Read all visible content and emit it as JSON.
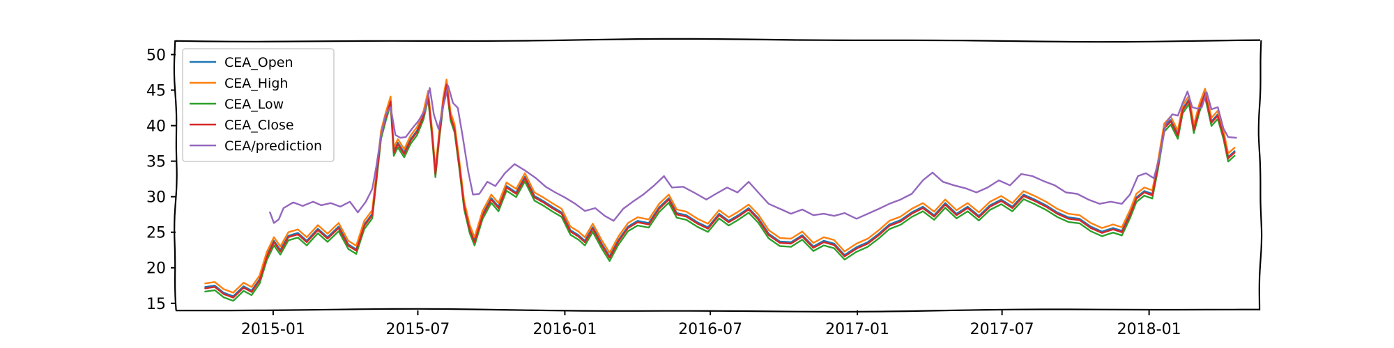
{
  "chart_data": {
    "type": "line",
    "title": "",
    "xlabel": "",
    "ylabel": "",
    "xlim": [
      "2014-09-01",
      "2018-05-20"
    ],
    "ylim": [
      14,
      52
    ],
    "yticks": [
      15,
      20,
      25,
      30,
      35,
      40,
      45,
      50
    ],
    "xticks": [
      {
        "date": "2015-01-01",
        "label": "2015-01"
      },
      {
        "date": "2015-07-01",
        "label": "2015-07"
      },
      {
        "date": "2016-01-01",
        "label": "2016-01"
      },
      {
        "date": "2016-07-01",
        "label": "2016-07"
      },
      {
        "date": "2017-01-01",
        "label": "2017-01"
      },
      {
        "date": "2017-07-01",
        "label": "2017-07"
      },
      {
        "date": "2018-01-01",
        "label": "2018-01"
      }
    ],
    "grid": false,
    "legend_position": "top-left",
    "close_series": [
      [
        "2014-10-08",
        17.1
      ],
      [
        "2014-10-20",
        17.3
      ],
      [
        "2014-10-31",
        16.3
      ],
      [
        "2014-11-12",
        15.8
      ],
      [
        "2014-11-25",
        17.2
      ],
      [
        "2014-12-05",
        16.6
      ],
      [
        "2014-12-15",
        18.2
      ],
      [
        "2014-12-24",
        21.5
      ],
      [
        "2015-01-02",
        23.6
      ],
      [
        "2015-01-10",
        22.3
      ],
      [
        "2015-01-20",
        24.3
      ],
      [
        "2015-02-01",
        24.7
      ],
      [
        "2015-02-12",
        23.6
      ],
      [
        "2015-02-26",
        25.3
      ],
      [
        "2015-03-10",
        24.1
      ],
      [
        "2015-03-24",
        25.6
      ],
      [
        "2015-04-05",
        23.1
      ],
      [
        "2015-04-15",
        22.4
      ],
      [
        "2015-04-25",
        25.9
      ],
      [
        "2015-05-05",
        27.4
      ],
      [
        "2015-05-10",
        32.4
      ],
      [
        "2015-05-16",
        38.6
      ],
      [
        "2015-05-22",
        41.2
      ],
      [
        "2015-05-28",
        43.4
      ],
      [
        "2015-06-01",
        36.2
      ],
      [
        "2015-06-06",
        37.4
      ],
      [
        "2015-06-14",
        36.0
      ],
      [
        "2015-06-22",
        37.9
      ],
      [
        "2015-06-30",
        39.1
      ],
      [
        "2015-07-08",
        41.3
      ],
      [
        "2015-07-14",
        44.2
      ],
      [
        "2015-07-19",
        38.6
      ],
      [
        "2015-07-23",
        33.2
      ],
      [
        "2015-07-28",
        38.7
      ],
      [
        "2015-08-02",
        43.4
      ],
      [
        "2015-08-06",
        45.8
      ],
      [
        "2015-08-11",
        41.2
      ],
      [
        "2015-08-16",
        39.5
      ],
      [
        "2015-08-22",
        34.3
      ],
      [
        "2015-08-28",
        28.7
      ],
      [
        "2015-09-04",
        25.3
      ],
      [
        "2015-09-10",
        23.6
      ],
      [
        "2015-09-20",
        27.3
      ],
      [
        "2015-10-01",
        29.6
      ],
      [
        "2015-10-10",
        28.4
      ],
      [
        "2015-10-20",
        31.3
      ],
      [
        "2015-11-01",
        30.4
      ],
      [
        "2015-11-12",
        32.6
      ],
      [
        "2015-11-24",
        29.9
      ],
      [
        "2015-12-05",
        29.2
      ],
      [
        "2015-12-16",
        28.4
      ],
      [
        "2015-12-28",
        27.6
      ],
      [
        "2016-01-08",
        25.1
      ],
      [
        "2016-01-18",
        24.4
      ],
      [
        "2016-01-26",
        23.6
      ],
      [
        "2016-02-05",
        25.5
      ],
      [
        "2016-02-16",
        23.2
      ],
      [
        "2016-02-26",
        21.4
      ],
      [
        "2016-03-08",
        23.7
      ],
      [
        "2016-03-20",
        25.6
      ],
      [
        "2016-04-01",
        26.4
      ],
      [
        "2016-04-15",
        26.1
      ],
      [
        "2016-04-28",
        28.3
      ],
      [
        "2016-05-10",
        29.6
      ],
      [
        "2016-05-20",
        27.5
      ],
      [
        "2016-06-01",
        27.2
      ],
      [
        "2016-06-15",
        26.2
      ],
      [
        "2016-06-28",
        25.5
      ],
      [
        "2016-07-12",
        27.4
      ],
      [
        "2016-07-24",
        26.4
      ],
      [
        "2016-08-05",
        27.2
      ],
      [
        "2016-08-18",
        28.2
      ],
      [
        "2016-08-30",
        26.8
      ],
      [
        "2016-09-12",
        24.6
      ],
      [
        "2016-09-26",
        23.5
      ],
      [
        "2016-10-10",
        23.4
      ],
      [
        "2016-10-24",
        24.4
      ],
      [
        "2016-11-07",
        22.8
      ],
      [
        "2016-11-20",
        23.6
      ],
      [
        "2016-12-03",
        23.2
      ],
      [
        "2016-12-16",
        21.6
      ],
      [
        "2016-12-31",
        22.7
      ],
      [
        "2017-01-14",
        23.4
      ],
      [
        "2017-01-28",
        24.6
      ],
      [
        "2017-02-10",
        25.9
      ],
      [
        "2017-02-24",
        26.5
      ],
      [
        "2017-03-10",
        27.6
      ],
      [
        "2017-03-24",
        28.4
      ],
      [
        "2017-04-07",
        27.2
      ],
      [
        "2017-04-21",
        28.9
      ],
      [
        "2017-05-05",
        27.4
      ],
      [
        "2017-05-19",
        28.4
      ],
      [
        "2017-06-02",
        27.1
      ],
      [
        "2017-06-16",
        28.6
      ],
      [
        "2017-06-30",
        29.4
      ],
      [
        "2017-07-14",
        28.4
      ],
      [
        "2017-07-28",
        30.1
      ],
      [
        "2017-08-11",
        29.4
      ],
      [
        "2017-08-25",
        28.6
      ],
      [
        "2017-09-08",
        27.6
      ],
      [
        "2017-09-22",
        26.9
      ],
      [
        "2017-10-06",
        26.7
      ],
      [
        "2017-10-20",
        25.6
      ],
      [
        "2017-11-03",
        24.9
      ],
      [
        "2017-11-17",
        25.4
      ],
      [
        "2017-11-28",
        25.0
      ],
      [
        "2017-12-08",
        27.4
      ],
      [
        "2017-12-16",
        29.7
      ],
      [
        "2017-12-26",
        30.6
      ],
      [
        "2018-01-05",
        30.2
      ],
      [
        "2018-01-12",
        34.2
      ],
      [
        "2018-01-20",
        39.6
      ],
      [
        "2018-01-28",
        40.6
      ],
      [
        "2018-02-06",
        38.6
      ],
      [
        "2018-02-12",
        42.2
      ],
      [
        "2018-02-20",
        43.5
      ],
      [
        "2018-02-26",
        39.4
      ],
      [
        "2018-03-05",
        42.4
      ],
      [
        "2018-03-12",
        44.5
      ],
      [
        "2018-03-20",
        40.4
      ],
      [
        "2018-03-28",
        41.4
      ],
      [
        "2018-04-04",
        38.6
      ],
      [
        "2018-04-10",
        35.4
      ],
      [
        "2018-04-18",
        36.2
      ]
    ],
    "prediction_series": [
      [
        "2014-12-28",
        27.8
      ],
      [
        "2015-01-02",
        26.3
      ],
      [
        "2015-01-08",
        26.8
      ],
      [
        "2015-01-14",
        28.4
      ],
      [
        "2015-01-26",
        29.2
      ],
      [
        "2015-02-07",
        28.7
      ],
      [
        "2015-02-20",
        29.3
      ],
      [
        "2015-03-02",
        28.8
      ],
      [
        "2015-03-14",
        29.1
      ],
      [
        "2015-03-26",
        28.6
      ],
      [
        "2015-04-07",
        29.3
      ],
      [
        "2015-04-17",
        27.8
      ],
      [
        "2015-04-27",
        29.3
      ],
      [
        "2015-05-05",
        31.1
      ],
      [
        "2015-05-10",
        34.2
      ],
      [
        "2015-05-16",
        38.6
      ],
      [
        "2015-05-22",
        41.6
      ],
      [
        "2015-05-28",
        42.6
      ],
      [
        "2015-06-03",
        38.7
      ],
      [
        "2015-06-09",
        38.3
      ],
      [
        "2015-06-16",
        38.4
      ],
      [
        "2015-06-24",
        39.6
      ],
      [
        "2015-07-02",
        40.7
      ],
      [
        "2015-07-10",
        42.2
      ],
      [
        "2015-07-16",
        45.3
      ],
      [
        "2015-07-21",
        41.6
      ],
      [
        "2015-07-27",
        39.5
      ],
      [
        "2015-08-02",
        42.8
      ],
      [
        "2015-08-08",
        45.6
      ],
      [
        "2015-08-14",
        43.2
      ],
      [
        "2015-08-20",
        42.5
      ],
      [
        "2015-08-26",
        38.6
      ],
      [
        "2015-09-02",
        33.6
      ],
      [
        "2015-09-08",
        30.3
      ],
      [
        "2015-09-16",
        30.4
      ],
      [
        "2015-09-26",
        32.1
      ],
      [
        "2015-10-06",
        31.5
      ],
      [
        "2015-10-18",
        33.3
      ],
      [
        "2015-10-30",
        34.6
      ],
      [
        "2015-11-12",
        33.7
      ],
      [
        "2015-11-26",
        32.6
      ],
      [
        "2015-12-08",
        31.4
      ],
      [
        "2015-12-20",
        30.6
      ],
      [
        "2016-01-01",
        29.9
      ],
      [
        "2016-01-14",
        29.0
      ],
      [
        "2016-01-26",
        28.0
      ],
      [
        "2016-02-08",
        28.4
      ],
      [
        "2016-02-20",
        27.3
      ],
      [
        "2016-03-02",
        26.6
      ],
      [
        "2016-03-14",
        28.3
      ],
      [
        "2016-03-26",
        29.3
      ],
      [
        "2016-04-08",
        30.3
      ],
      [
        "2016-04-22",
        31.6
      ],
      [
        "2016-05-04",
        32.9
      ],
      [
        "2016-05-14",
        31.3
      ],
      [
        "2016-05-28",
        31.4
      ],
      [
        "2016-06-12",
        30.5
      ],
      [
        "2016-06-26",
        29.6
      ],
      [
        "2016-07-08",
        30.4
      ],
      [
        "2016-07-22",
        31.3
      ],
      [
        "2016-08-04",
        30.6
      ],
      [
        "2016-08-18",
        32.1
      ],
      [
        "2016-08-30",
        30.6
      ],
      [
        "2016-09-12",
        29.0
      ],
      [
        "2016-09-26",
        28.3
      ],
      [
        "2016-10-10",
        27.6
      ],
      [
        "2016-10-24",
        28.2
      ],
      [
        "2016-11-07",
        27.4
      ],
      [
        "2016-11-20",
        27.6
      ],
      [
        "2016-12-03",
        27.3
      ],
      [
        "2016-12-16",
        27.7
      ],
      [
        "2016-12-31",
        26.9
      ],
      [
        "2017-01-14",
        27.6
      ],
      [
        "2017-01-28",
        28.3
      ],
      [
        "2017-02-10",
        29.0
      ],
      [
        "2017-02-24",
        29.6
      ],
      [
        "2017-03-10",
        30.4
      ],
      [
        "2017-03-24",
        32.3
      ],
      [
        "2017-04-05",
        33.4
      ],
      [
        "2017-04-18",
        32.1
      ],
      [
        "2017-05-02",
        31.6
      ],
      [
        "2017-05-16",
        31.2
      ],
      [
        "2017-05-30",
        30.6
      ],
      [
        "2017-06-13",
        31.3
      ],
      [
        "2017-06-27",
        32.3
      ],
      [
        "2017-07-11",
        31.6
      ],
      [
        "2017-07-25",
        33.2
      ],
      [
        "2017-08-08",
        32.9
      ],
      [
        "2017-08-22",
        32.2
      ],
      [
        "2017-09-05",
        31.6
      ],
      [
        "2017-09-19",
        30.6
      ],
      [
        "2017-10-03",
        30.4
      ],
      [
        "2017-10-17",
        29.6
      ],
      [
        "2017-10-31",
        29.0
      ],
      [
        "2017-11-14",
        29.3
      ],
      [
        "2017-11-28",
        29.0
      ],
      [
        "2017-12-08",
        30.3
      ],
      [
        "2017-12-18",
        32.9
      ],
      [
        "2017-12-28",
        33.3
      ],
      [
        "2018-01-07",
        32.6
      ],
      [
        "2018-01-14",
        35.6
      ],
      [
        "2018-01-22",
        40.3
      ],
      [
        "2018-01-30",
        41.6
      ],
      [
        "2018-02-06",
        41.4
      ],
      [
        "2018-02-12",
        43.2
      ],
      [
        "2018-02-18",
        44.8
      ],
      [
        "2018-02-24",
        42.6
      ],
      [
        "2018-03-02",
        42.4
      ],
      [
        "2018-03-08",
        42.6
      ],
      [
        "2018-03-14",
        44.7
      ],
      [
        "2018-03-20",
        42.3
      ],
      [
        "2018-03-28",
        42.6
      ],
      [
        "2018-04-04",
        39.6
      ],
      [
        "2018-04-10",
        38.4
      ],
      [
        "2018-04-20",
        38.3
      ]
    ],
    "series": [
      {
        "name": "CEA_Open",
        "color": "#1f77b4",
        "derive": "close",
        "offset": 0.2
      },
      {
        "name": "CEA_High",
        "color": "#ff7f0e",
        "derive": "close",
        "offset": 0.7
      },
      {
        "name": "CEA_Low",
        "color": "#2ca02c",
        "derive": "close",
        "offset": -0.45
      },
      {
        "name": "CEA_Close",
        "color": "#d62728",
        "derive": "close",
        "offset": 0
      },
      {
        "name": "CEA/prediction",
        "color": "#9467bd",
        "derive": "prediction",
        "offset": 0
      }
    ]
  }
}
